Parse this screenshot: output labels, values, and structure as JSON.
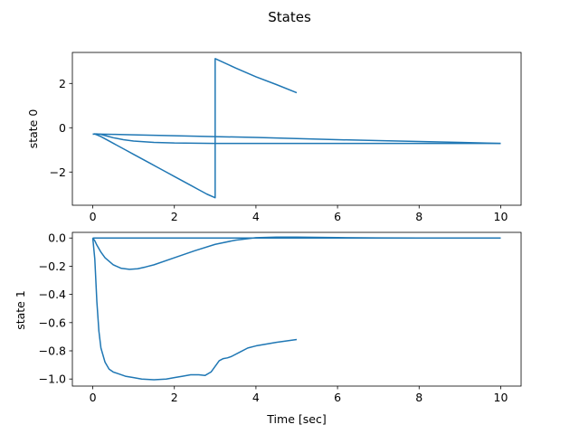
{
  "figure": {
    "title": "States"
  },
  "chart_data": [
    {
      "type": "line",
      "title": "",
      "xlabel": "",
      "ylabel": "state 0",
      "xlim": [
        -0.5,
        10.5
      ],
      "ylim": [
        -3.5,
        3.4
      ],
      "x_ticks": [
        0,
        2,
        4,
        6,
        8,
        10
      ],
      "y_ticks": [
        -2,
        0,
        2
      ],
      "grid": false,
      "color": "#1f77b4",
      "series": [
        {
          "x": [
            0,
            0.05,
            0.1,
            0.2,
            0.3,
            0.5,
            0.75,
            1,
            1.5,
            2,
            2.5,
            3,
            3.5,
            4,
            5,
            6,
            7,
            8,
            9,
            10
          ],
          "values": [
            -0.29,
            -0.28,
            -0.28,
            -0.3,
            -0.35,
            -0.45,
            -0.54,
            -0.6,
            -0.66,
            -0.69,
            -0.7,
            -0.71,
            -0.71,
            -0.71,
            -0.71,
            -0.71,
            -0.71,
            -0.71,
            -0.71,
            -0.71
          ]
        },
        {
          "x": [
            0,
            0.05,
            0.2,
            0.4,
            0.6,
            0.8,
            1,
            1.2,
            1.4,
            1.6,
            1.8,
            2,
            2.2,
            2.4,
            2.6,
            2.8,
            3.0,
            3.0,
            3.0,
            3.5,
            4,
            4.5,
            5
          ],
          "values": [
            -0.29,
            -0.28,
            -0.4,
            -0.6,
            -0.8,
            -1.0,
            -1.2,
            -1.4,
            -1.6,
            -1.8,
            -2.0,
            -2.2,
            -2.4,
            -2.6,
            -2.8,
            -3.0,
            -3.16,
            -3.16,
            3.12,
            2.7,
            2.3,
            1.95,
            1.58
          ]
        },
        {
          "x": [
            0,
            0.2,
            0.5,
            1,
            2,
            3,
            4,
            5,
            6,
            7,
            8,
            9,
            10
          ],
          "values": [
            -0.29,
            -0.29,
            -0.3,
            -0.32,
            -0.36,
            -0.4,
            -0.44,
            -0.49,
            -0.54,
            -0.58,
            -0.62,
            -0.66,
            -0.71
          ]
        }
      ]
    },
    {
      "type": "line",
      "title": "",
      "xlabel": "Time [sec]",
      "ylabel": "state 1",
      "xlim": [
        -0.5,
        10.5
      ],
      "ylim": [
        -1.05,
        0.04
      ],
      "x_ticks": [
        0,
        2,
        4,
        6,
        8,
        10
      ],
      "y_ticks": [
        0.0,
        -0.2,
        -0.4,
        -0.6,
        -0.8,
        -1.0
      ],
      "y_tick_labels": [
        "0.0",
        "−0.2",
        "−0.4",
        "−0.6",
        "−0.8",
        "−1.0"
      ],
      "grid": false,
      "color": "#1f77b4",
      "series": [
        {
          "x": [
            0,
            0.05,
            0.1,
            0.15,
            0.2,
            0.3,
            0.4,
            0.5,
            0.6,
            0.8,
            1.0,
            1.2,
            1.5,
            1.8,
            2.0,
            2.2,
            2.4,
            2.6,
            2.75,
            2.9,
            3.0,
            3.1,
            3.2,
            3.3,
            3.4,
            3.6,
            3.8,
            4.0,
            4.5,
            5.0
          ],
          "values": [
            0.0,
            -0.15,
            -0.45,
            -0.66,
            -0.78,
            -0.88,
            -0.93,
            -0.95,
            -0.96,
            -0.98,
            -0.99,
            -1.0,
            -1.005,
            -1.0,
            -0.99,
            -0.98,
            -0.97,
            -0.97,
            -0.975,
            -0.95,
            -0.91,
            -0.87,
            -0.855,
            -0.85,
            -0.84,
            -0.81,
            -0.78,
            -0.765,
            -0.74,
            -0.72
          ]
        },
        {
          "x": [
            0,
            0.05,
            0.1,
            0.2,
            0.3,
            0.5,
            0.7,
            0.9,
            1.1,
            1.3,
            1.5,
            2.0,
            2.5,
            3.0,
            3.5,
            4.0,
            4.5,
            5.0,
            6.0,
            7.0,
            8.0,
            9.0,
            10.0
          ],
          "values": [
            0.0,
            -0.02,
            -0.05,
            -0.1,
            -0.14,
            -0.19,
            -0.215,
            -0.222,
            -0.218,
            -0.205,
            -0.19,
            -0.14,
            -0.09,
            -0.045,
            -0.015,
            0.002,
            0.006,
            0.006,
            0.003,
            0.001,
            0.0,
            0.0,
            0.0
          ]
        },
        {
          "x": [
            0,
            10
          ],
          "values": [
            0.0,
            0.0
          ]
        }
      ]
    }
  ]
}
